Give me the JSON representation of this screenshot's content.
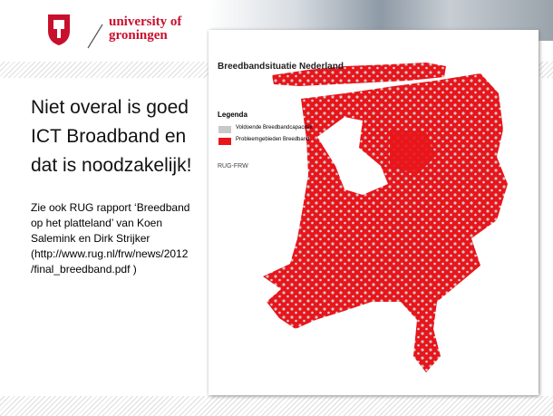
{
  "logo": {
    "line1": "university of",
    "line2": "groningen"
  },
  "heading": {
    "lines": [
      "Niet overal is goed",
      "ICT Broadband en",
      "dat is noodzakelijk!"
    ]
  },
  "body": {
    "lines": [
      "Zie ook RUG rapport ‘Breedband",
      "op het platteland’ van Koen",
      "Salemink en Dirk Strijker",
      "(http://www.rug.nl/frw/news/2012",
      "/final_breedband.pdf )"
    ]
  },
  "map": {
    "title": "Breedbandsituatie Nederland",
    "legend_title": "Legenda",
    "legend_items": [
      "Voldoende Breedbandcapaciteit",
      "Probleemgebieden Breedband"
    ],
    "source": "RUG-FRW"
  }
}
